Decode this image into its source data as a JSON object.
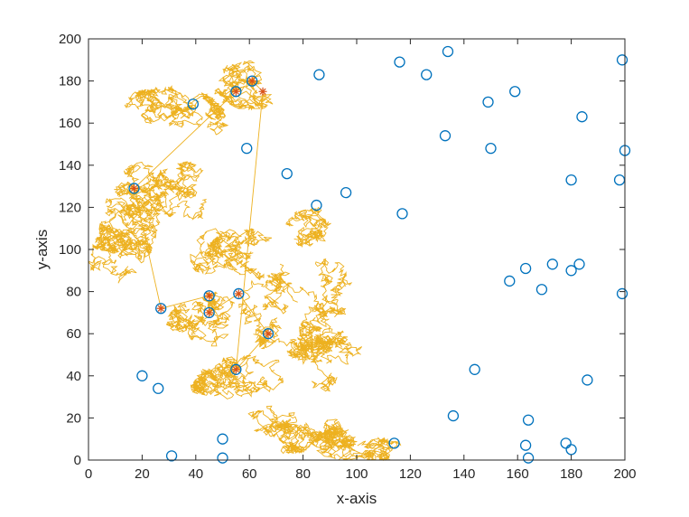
{
  "chart_data": {
    "type": "scatter",
    "xlabel": "x-axis",
    "ylabel": "y-axis",
    "xlim": [
      0,
      200
    ],
    "ylim": [
      0,
      200
    ],
    "x_ticks": [
      0,
      20,
      40,
      60,
      80,
      100,
      120,
      140,
      160,
      180,
      200
    ],
    "y_ticks": [
      0,
      20,
      40,
      60,
      80,
      100,
      120,
      140,
      160,
      180,
      200
    ],
    "grid": false,
    "box": true,
    "colors": {
      "points": "#0072BD",
      "walk": "#EDB120",
      "marker": "#D95319",
      "axis": "#262626"
    },
    "series": [
      {
        "kind": "circles",
        "points": [
          [
            39,
            169
          ],
          [
            59,
            148
          ],
          [
            61,
            180
          ],
          [
            55,
            175
          ],
          [
            86,
            183
          ],
          [
            74,
            136
          ],
          [
            85,
            121
          ],
          [
            96,
            127
          ],
          [
            116,
            189
          ],
          [
            126,
            183
          ],
          [
            134,
            194
          ],
          [
            133,
            154
          ],
          [
            117,
            117
          ],
          [
            150,
            148
          ],
          [
            149,
            170
          ],
          [
            159,
            175
          ],
          [
            184,
            163
          ],
          [
            180,
            133
          ],
          [
            198,
            133
          ],
          [
            200,
            147
          ],
          [
            199,
            190
          ],
          [
            157,
            85
          ],
          [
            163,
            91
          ],
          [
            169,
            81
          ],
          [
            173,
            93
          ],
          [
            180,
            90
          ],
          [
            183,
            93
          ],
          [
            199,
            79
          ],
          [
            17,
            129
          ],
          [
            27,
            72
          ],
          [
            45,
            78
          ],
          [
            45,
            70
          ],
          [
            56,
            79
          ],
          [
            67,
            60
          ],
          [
            55,
            43
          ],
          [
            20,
            40
          ],
          [
            26,
            34
          ],
          [
            31,
            2
          ],
          [
            50,
            10
          ],
          [
            50,
            1
          ],
          [
            114,
            8
          ],
          [
            136,
            21
          ],
          [
            144,
            43
          ],
          [
            164,
            19
          ],
          [
            163,
            7
          ],
          [
            164,
            1
          ],
          [
            178,
            8
          ],
          [
            180,
            5
          ],
          [
            186,
            38
          ]
        ]
      },
      {
        "kind": "random-walk",
        "anchors": [
          [
            55,
            175
          ],
          [
            17,
            129
          ],
          [
            27,
            72
          ],
          [
            45,
            78
          ],
          [
            45,
            70
          ],
          [
            56,
            79
          ],
          [
            67,
            60
          ],
          [
            55,
            43
          ],
          [
            65,
            175
          ],
          [
            61,
            180
          ]
        ]
      }
    ],
    "highlighted": [
      [
        55,
        175
      ],
      [
        61,
        180
      ],
      [
        65,
        175
      ],
      [
        17,
        129
      ],
      [
        27,
        72
      ],
      [
        45,
        78
      ],
      [
        45,
        70
      ],
      [
        56,
        79
      ],
      [
        67,
        60
      ],
      [
        55,
        43
      ]
    ]
  }
}
